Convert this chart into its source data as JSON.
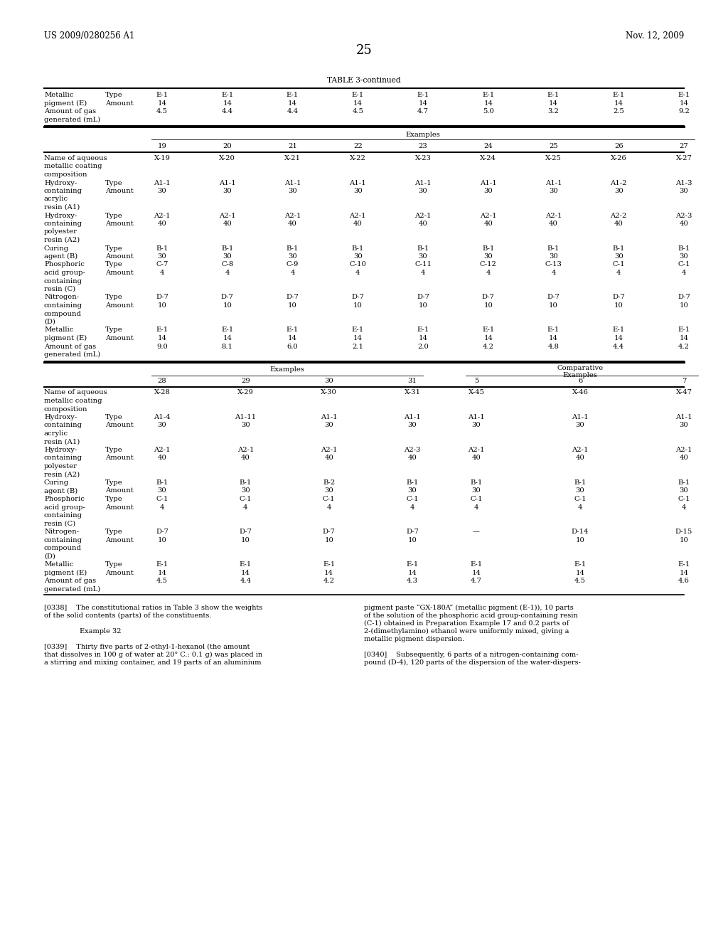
{
  "header_left": "US 2009/0280256 A1",
  "header_right": "Nov. 12, 2009",
  "page_number": "25",
  "table_title": "TABLE 3-continued",
  "bg_color": "#ffffff",
  "font_size": 7.2,
  "table1_rows": [
    [
      "Metallic",
      "Type",
      "E-1",
      "E-1",
      "E-1",
      "E-1",
      "E-1",
      "E-1",
      "E-1",
      "E-1",
      "E-1"
    ],
    [
      "pigment (E)",
      "Amount",
      "14",
      "14",
      "14",
      "14",
      "14",
      "14",
      "14",
      "14",
      "14"
    ],
    [
      "Amount of gas",
      "",
      "4.5",
      "4.4",
      "4.4",
      "4.5",
      "4.7",
      "5.0",
      "3.2",
      "2.5",
      "9.2"
    ],
    [
      "generated (mL)",
      "",
      "",
      "",
      "",
      "",
      "",
      "",
      "",
      "",
      ""
    ]
  ],
  "table2_cols": [
    "19",
    "20",
    "21",
    "22",
    "23",
    "24",
    "25",
    "26",
    "27"
  ],
  "table2_rows": [
    [
      "Name of aqueous",
      "",
      "X-19",
      "X-20",
      "X-21",
      "X-22",
      "X-23",
      "X-24",
      "X-25",
      "X-26",
      "X-27"
    ],
    [
      "metallic coating",
      "",
      "",
      "",
      "",
      "",
      "",
      "",
      "",
      "",
      ""
    ],
    [
      "composition",
      "",
      "",
      "",
      "",
      "",
      "",
      "",
      "",
      "",
      ""
    ],
    [
      "Hydroxy-",
      "Type",
      "A1-1",
      "A1-1",
      "A1-1",
      "A1-1",
      "A1-1",
      "A1-1",
      "A1-1",
      "A1-2",
      "A1-3"
    ],
    [
      "containing",
      "Amount",
      "30",
      "30",
      "30",
      "30",
      "30",
      "30",
      "30",
      "30",
      "30"
    ],
    [
      "acrylic",
      "",
      "",
      "",
      "",
      "",
      "",
      "",
      "",
      "",
      ""
    ],
    [
      "resin (A1)",
      "",
      "",
      "",
      "",
      "",
      "",
      "",
      "",
      "",
      ""
    ],
    [
      "Hydroxy-",
      "Type",
      "A2-1",
      "A2-1",
      "A2-1",
      "A2-1",
      "A2-1",
      "A2-1",
      "A2-1",
      "A2-2",
      "A2-3"
    ],
    [
      "containing",
      "Amount",
      "40",
      "40",
      "40",
      "40",
      "40",
      "40",
      "40",
      "40",
      "40"
    ],
    [
      "polyester",
      "",
      "",
      "",
      "",
      "",
      "",
      "",
      "",
      "",
      ""
    ],
    [
      "resin (A2)",
      "",
      "",
      "",
      "",
      "",
      "",
      "",
      "",
      "",
      ""
    ],
    [
      "Curing",
      "Type",
      "B-1",
      "B-1",
      "B-1",
      "B-1",
      "B-1",
      "B-1",
      "B-1",
      "B-1",
      "B-1"
    ],
    [
      "agent (B)",
      "Amount",
      "30",
      "30",
      "30",
      "30",
      "30",
      "30",
      "30",
      "30",
      "30"
    ],
    [
      "Phosphoric",
      "Type",
      "C-7",
      "C-8",
      "C-9",
      "C-10",
      "C-11",
      "C-12",
      "C-13",
      "C-1",
      "C-1"
    ],
    [
      "acid group-",
      "Amount",
      "4",
      "4",
      "4",
      "4",
      "4",
      "4",
      "4",
      "4",
      "4"
    ],
    [
      "containing",
      "",
      "",
      "",
      "",
      "",
      "",
      "",
      "",
      "",
      ""
    ],
    [
      "resin (C)",
      "",
      "",
      "",
      "",
      "",
      "",
      "",
      "",
      "",
      ""
    ],
    [
      "Nitrogen-",
      "Type",
      "D-7",
      "D-7",
      "D-7",
      "D-7",
      "D-7",
      "D-7",
      "D-7",
      "D-7",
      "D-7"
    ],
    [
      "containing",
      "Amount",
      "10",
      "10",
      "10",
      "10",
      "10",
      "10",
      "10",
      "10",
      "10"
    ],
    [
      "compound",
      "",
      "",
      "",
      "",
      "",
      "",
      "",
      "",
      "",
      ""
    ],
    [
      "(D)",
      "",
      "",
      "",
      "",
      "",
      "",
      "",
      "",
      "",
      ""
    ],
    [
      "Metallic",
      "Type",
      "E-1",
      "E-1",
      "E-1",
      "E-1",
      "E-1",
      "E-1",
      "E-1",
      "E-1",
      "E-1"
    ],
    [
      "pigment (E)",
      "Amount",
      "14",
      "14",
      "14",
      "14",
      "14",
      "14",
      "14",
      "14",
      "14"
    ],
    [
      "Amount of gas",
      "",
      "9.0",
      "8.1",
      "6.0",
      "2.1",
      "2.0",
      "4.2",
      "4.8",
      "4.4",
      "4.2"
    ],
    [
      "generated (mL)",
      "",
      "",
      "",
      "",
      "",
      "",
      "",
      "",
      "",
      ""
    ]
  ],
  "table3_ex_cols": [
    "28",
    "29",
    "30",
    "31"
  ],
  "table3_comp_cols": [
    "5",
    "6",
    "7"
  ],
  "table3_rows": [
    [
      "Name of aqueous",
      "",
      "X-28",
      "X-29",
      "X-30",
      "X-31",
      "X-45",
      "X-46",
      "X-47"
    ],
    [
      "metallic coating",
      "",
      "",
      "",
      "",
      "",
      "",
      "",
      ""
    ],
    [
      "composition",
      "",
      "",
      "",
      "",
      "",
      "",
      "",
      ""
    ],
    [
      "Hydroxy-",
      "Type",
      "A1-4",
      "A1-11",
      "A1-1",
      "A1-1",
      "A1-1",
      "A1-1",
      "A1-1"
    ],
    [
      "containing",
      "Amount",
      "30",
      "30",
      "30",
      "30",
      "30",
      "30",
      "30"
    ],
    [
      "acrylic",
      "",
      "",
      "",
      "",
      "",
      "",
      "",
      ""
    ],
    [
      "resin (A1)",
      "",
      "",
      "",
      "",
      "",
      "",
      "",
      ""
    ],
    [
      "Hydroxy-",
      "Type",
      "A2-1",
      "A2-1",
      "A2-1",
      "A2-3",
      "A2-1",
      "A2-1",
      "A2-1"
    ],
    [
      "containing",
      "Amount",
      "40",
      "40",
      "40",
      "40",
      "40",
      "40",
      "40"
    ],
    [
      "polyester",
      "",
      "",
      "",
      "",
      "",
      "",
      "",
      ""
    ],
    [
      "resin (A2)",
      "",
      "",
      "",
      "",
      "",
      "",
      "",
      ""
    ],
    [
      "Curing",
      "Type",
      "B-1",
      "B-1",
      "B-2",
      "B-1",
      "B-1",
      "B-1",
      "B-1"
    ],
    [
      "agent (B)",
      "Amount",
      "30",
      "30",
      "30",
      "30",
      "30",
      "30",
      "30"
    ],
    [
      "Phosphoric",
      "Type",
      "C-1",
      "C-1",
      "C-1",
      "C-1",
      "C-1",
      "C-1",
      "C-1"
    ],
    [
      "acid group-",
      "Amount",
      "4",
      "4",
      "4",
      "4",
      "4",
      "4",
      "4"
    ],
    [
      "containing",
      "",
      "",
      "",
      "",
      "",
      "",
      "",
      ""
    ],
    [
      "resin (C)",
      "",
      "",
      "",
      "",
      "",
      "",
      "",
      ""
    ],
    [
      "Nitrogen-",
      "Type",
      "D-7",
      "D-7",
      "D-7",
      "D-7",
      "—",
      "D-14",
      "D-15"
    ],
    [
      "containing",
      "Amount",
      "10",
      "10",
      "10",
      "10",
      "",
      "10",
      "10"
    ],
    [
      "compound",
      "",
      "",
      "",
      "",
      "",
      "",
      "",
      ""
    ],
    [
      "(D)",
      "",
      "",
      "",
      "",
      "",
      "",
      "",
      ""
    ],
    [
      "Metallic",
      "Type",
      "E-1",
      "E-1",
      "E-1",
      "E-1",
      "E-1",
      "E-1",
      "E-1"
    ],
    [
      "pigment (E)",
      "Amount",
      "14",
      "14",
      "14",
      "14",
      "14",
      "14",
      "14"
    ],
    [
      "Amount of gas",
      "",
      "4.5",
      "4.4",
      "4.2",
      "4.3",
      "4.7",
      "4.5",
      "4.6"
    ],
    [
      "generated (mL)",
      "",
      "",
      "",
      "",
      "",
      "",
      "",
      ""
    ]
  ],
  "fn_left_lines": [
    {
      "text": "[0338]  The constitutional ratios in Table 3 show the weights",
      "indent": 0,
      "bold": false
    },
    {
      "text": "of the solid contents (parts) of the constituents.",
      "indent": 0,
      "bold": false
    },
    {
      "text": "",
      "indent": 0,
      "bold": false
    },
    {
      "text": "Example 32",
      "indent": 50,
      "bold": false
    },
    {
      "text": "",
      "indent": 0,
      "bold": false
    },
    {
      "text": "[0339]  Thirty five parts of 2-ethyl-1-hexanol (the amount",
      "indent": 0,
      "bold": false
    },
    {
      "text": "that dissolves in 100 g of water at 20° C.: 0.1 g) was placed in",
      "indent": 0,
      "bold": false
    },
    {
      "text": "a stirring and mixing container, and 19 parts of an aluminium",
      "indent": 0,
      "bold": false
    }
  ],
  "fn_right_lines": [
    {
      "text": "pigment paste “GX-180A” (metallic pigment (E-1)), 10 parts",
      "indent": 0
    },
    {
      "text": "of the solution of the phosphoric acid group-containing resin",
      "indent": 0
    },
    {
      "text": "(C-1) obtained in Preparation Example 17 and 0.2 parts of",
      "indent": 0
    },
    {
      "text": "2-(dimethylamino) ethanol were uniformly mixed, giving a",
      "indent": 0
    },
    {
      "text": "metallic pigment dispersion.",
      "indent": 0
    },
    {
      "text": "",
      "indent": 0
    },
    {
      "text": "[0340]  Subsequently, 6 parts of a nitrogen-containing com-",
      "indent": 0
    },
    {
      "text": "pound (D-4), 120 parts of the dispersion of the water-dispers-",
      "indent": 0
    }
  ]
}
